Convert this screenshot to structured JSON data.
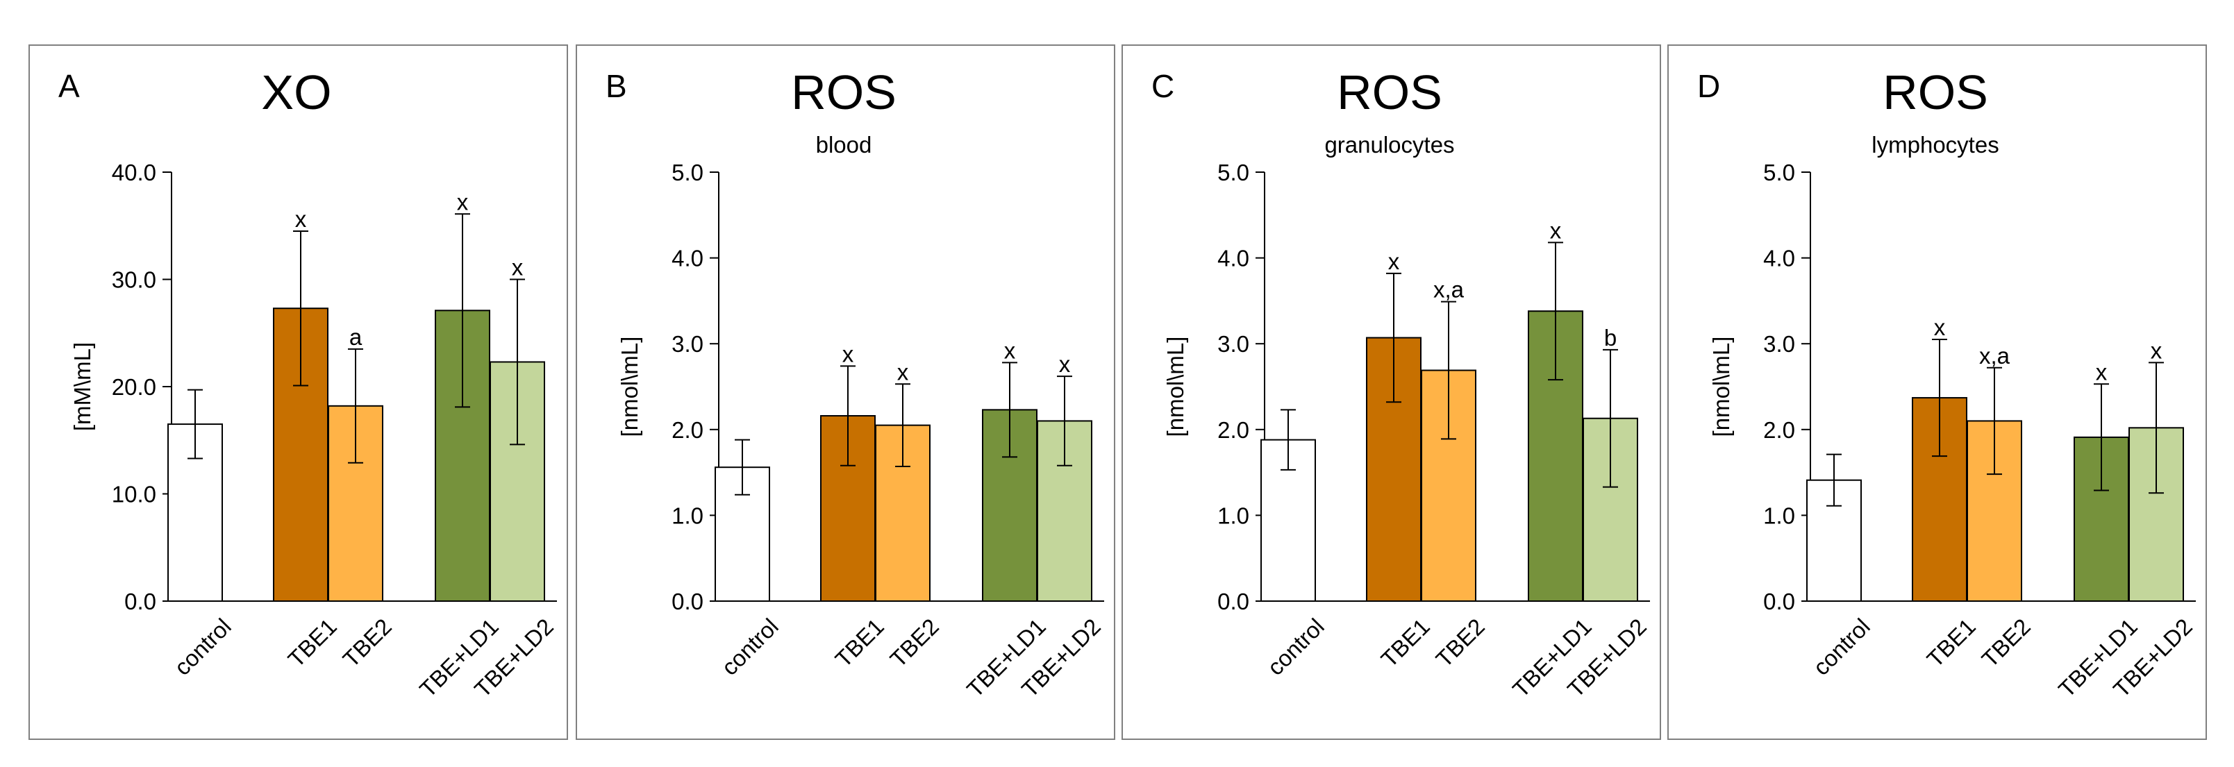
{
  "figure": {
    "colors": {
      "control": "#ffffff",
      "TBE1": "#c77000",
      "TBE2": "#ffb347",
      "TBE+LD1": "#76923c",
      "TBE+LD2": "#c3d69b",
      "outline": "#000000",
      "panel_border": "#808080"
    }
  },
  "chart_data": [
    {
      "type": "bar",
      "panel_label": "A",
      "title": "XO",
      "subtitle": "",
      "ylabel": "[mM\\mL]",
      "xlabel": "",
      "ylim": [
        0,
        40
      ],
      "yticks": [
        0,
        10,
        20,
        30,
        40
      ],
      "ytick_labels": [
        "0.0",
        "10.0",
        "20.0",
        "30.0",
        "40.0"
      ],
      "categories": [
        "control",
        "TBE1",
        "TBE2",
        "TBE+LD1",
        "TBE+LD2"
      ],
      "values": [
        16.5,
        27.3,
        18.2,
        27.1,
        22.3
      ],
      "errors": [
        3.2,
        7.2,
        5.3,
        9.0,
        7.7
      ],
      "annotations": [
        "",
        "x",
        "a",
        "x",
        "x"
      ]
    },
    {
      "type": "bar",
      "panel_label": "B",
      "title": "ROS",
      "subtitle": "blood",
      "ylabel": "[nmol\\mL]",
      "xlabel": "",
      "ylim": [
        0,
        5
      ],
      "yticks": [
        0,
        1,
        2,
        3,
        4,
        5
      ],
      "ytick_labels": [
        "0.0",
        "1.0",
        "2.0",
        "3.0",
        "4.0",
        "5.0"
      ],
      "categories": [
        "control",
        "TBE1",
        "TBE2",
        "TBE+LD1",
        "TBE+LD2"
      ],
      "values": [
        1.56,
        2.16,
        2.05,
        2.23,
        2.1
      ],
      "errors": [
        0.32,
        0.58,
        0.48,
        0.55,
        0.52
      ],
      "annotations": [
        "",
        "x",
        "x",
        "x",
        "x"
      ]
    },
    {
      "type": "bar",
      "panel_label": "C",
      "title": "ROS",
      "subtitle": "granulocytes",
      "ylabel": "[nmol\\mL]",
      "xlabel": "",
      "ylim": [
        0,
        5
      ],
      "yticks": [
        0,
        1,
        2,
        3,
        4,
        5
      ],
      "ytick_labels": [
        "0.0",
        "1.0",
        "2.0",
        "3.0",
        "4.0",
        "5.0"
      ],
      "categories": [
        "control",
        "TBE1",
        "TBE2",
        "TBE+LD1",
        "TBE+LD2"
      ],
      "values": [
        1.88,
        3.07,
        2.69,
        3.38,
        2.13
      ],
      "errors": [
        0.35,
        0.75,
        0.8,
        0.8,
        0.8
      ],
      "annotations": [
        "",
        "x",
        "x,a",
        "x",
        "b"
      ]
    },
    {
      "type": "bar",
      "panel_label": "D",
      "title": "ROS",
      "subtitle": "lymphocytes",
      "ylabel": "[nmol\\mL]",
      "xlabel": "",
      "ylim": [
        0,
        5
      ],
      "yticks": [
        0,
        1,
        2,
        3,
        4,
        5
      ],
      "ytick_labels": [
        "0.0",
        "1.0",
        "2.0",
        "3.0",
        "4.0",
        "5.0"
      ],
      "categories": [
        "control",
        "TBE1",
        "TBE2",
        "TBE+LD1",
        "TBE+LD2"
      ],
      "values": [
        1.41,
        2.37,
        2.1,
        1.91,
        2.02
      ],
      "errors": [
        0.3,
        0.68,
        0.62,
        0.62,
        0.76
      ],
      "annotations": [
        "",
        "x",
        "x,a",
        "x",
        "x"
      ]
    }
  ]
}
